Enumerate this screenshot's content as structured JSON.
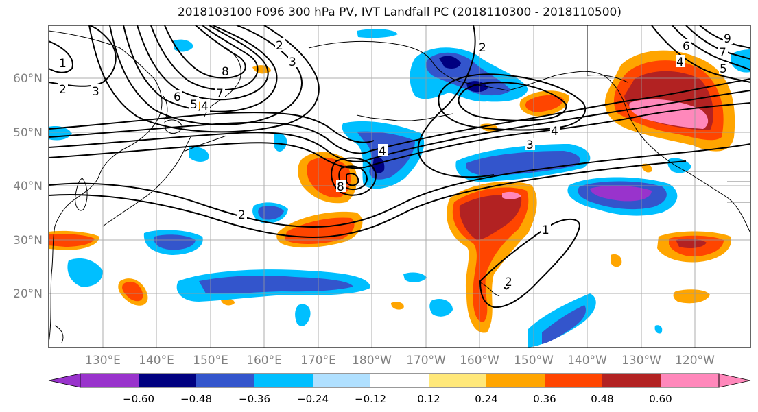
{
  "title": "2018103100 F096 300 hPa PV, IVT Landfall PC (2018110300 - 2018110500)",
  "map": {
    "lat_labels": [
      "60°N",
      "50°N",
      "40°N",
      "30°N",
      "20°N"
    ],
    "lon_labels": [
      "130°E",
      "140°E",
      "150°E",
      "160°E",
      "170°E",
      "180°W",
      "170°W",
      "160°W",
      "150°W",
      "140°W",
      "130°W",
      "120°W"
    ],
    "contour_labels": [
      "1",
      "2",
      "3",
      "2",
      "8",
      "7",
      "6",
      "5",
      "4",
      "3",
      "4",
      "8",
      "2",
      "4",
      "3",
      "2",
      "7",
      "5",
      "4",
      "1",
      "2",
      "6",
      "9"
    ],
    "contour_color": "#000000"
  },
  "colorbar": {
    "colors": [
      "#9933cc",
      "#000080",
      "#3355cc",
      "#00bfff",
      "#b0e0ff",
      "#ffffff",
      "#ffe87a",
      "#ffa500",
      "#ff4500",
      "#b22222",
      "#ff88bb"
    ],
    "tick_labels": [
      "−0.60",
      "−0.48",
      "−0.36",
      "−0.24",
      "−0.12",
      "0.12",
      "0.24",
      "0.36",
      "0.48",
      "0.60"
    ]
  }
}
